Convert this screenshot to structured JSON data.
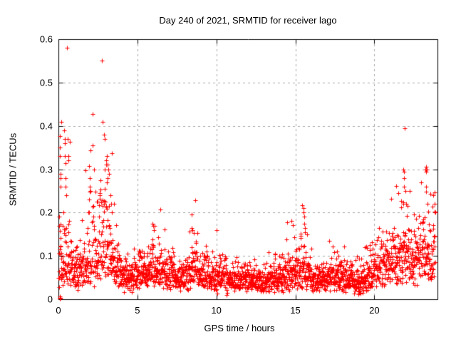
{
  "chart_data": {
    "type": "scatter",
    "title": "Day 240 of 2021, SRMTID for receiver lago",
    "xlabel": "GPS time / hours",
    "ylabel": "SRMTID / TECUs",
    "xlim": [
      0,
      24
    ],
    "ylim": [
      0,
      0.6
    ],
    "xtick_values": [
      0,
      5,
      10,
      15,
      20
    ],
    "xtick_labels": [
      "0",
      "5",
      "10",
      "15",
      "20"
    ],
    "ytick_values": [
      0,
      0.1,
      0.2,
      0.3,
      0.4,
      0.5,
      0.6
    ],
    "ytick_labels": [
      "0",
      "0.1",
      "0.2",
      "0.3",
      "0.4",
      "0.5",
      "0.6"
    ],
    "grid": true,
    "grid_color": "#a6a6a6",
    "border_color": "#000000",
    "background_color": "#ffffff",
    "marker": {
      "shape": "plus",
      "color": "#ff0000",
      "size": 7
    },
    "sampling": {
      "n_points": 2400,
      "t_start": 0.02,
      "t_end": 23.85,
      "seed": 20210240
    },
    "envelope": {
      "comment": "per-half-hour distribution of SRMTID values read from the plot: median band and upper envelope (TECUs)",
      "hours": [
        0,
        0.5,
        1,
        1.5,
        2,
        2.5,
        3,
        3.5,
        4,
        4.5,
        5,
        5.5,
        6,
        6.5,
        7,
        7.5,
        8,
        8.5,
        9,
        9.5,
        10,
        10.5,
        11,
        11.5,
        12,
        12.5,
        13,
        13.5,
        14,
        14.5,
        15,
        15.5,
        16,
        16.5,
        17,
        17.5,
        18,
        18.5,
        19,
        19.5,
        20,
        20.5,
        21,
        21.5,
        22,
        22.5,
        23,
        23.5,
        24
      ],
      "median": [
        0.075,
        0.08,
        0.07,
        0.07,
        0.08,
        0.095,
        0.12,
        0.09,
        0.055,
        0.055,
        0.065,
        0.06,
        0.08,
        0.06,
        0.065,
        0.045,
        0.055,
        0.075,
        0.06,
        0.055,
        0.05,
        0.05,
        0.05,
        0.045,
        0.05,
        0.045,
        0.04,
        0.045,
        0.05,
        0.06,
        0.065,
        0.075,
        0.055,
        0.05,
        0.05,
        0.06,
        0.05,
        0.045,
        0.04,
        0.055,
        0.065,
        0.075,
        0.085,
        0.095,
        0.11,
        0.095,
        0.1,
        0.11,
        0.1
      ],
      "high": [
        0.3,
        0.38,
        0.13,
        0.16,
        0.27,
        0.5,
        0.34,
        0.22,
        0.1,
        0.1,
        0.13,
        0.12,
        0.18,
        0.13,
        0.14,
        0.09,
        0.12,
        0.17,
        0.13,
        0.11,
        0.1,
        0.095,
        0.1,
        0.09,
        0.095,
        0.085,
        0.09,
        0.085,
        0.11,
        0.13,
        0.14,
        0.21,
        0.12,
        0.1,
        0.11,
        0.12,
        0.12,
        0.1,
        0.09,
        0.15,
        0.14,
        0.17,
        0.18,
        0.22,
        0.3,
        0.2,
        0.24,
        0.3,
        0.22
      ]
    },
    "notable_points": [
      [
        0.07,
        0.002
      ],
      [
        0.09,
        0.004
      ],
      [
        0.1,
        0.006
      ],
      [
        0.11,
        0.001
      ],
      [
        0.13,
        0.003
      ],
      [
        0.05,
        0.19
      ],
      [
        0.06,
        0.17
      ],
      [
        0.1,
        0.35
      ],
      [
        0.1,
        0.33
      ],
      [
        0.12,
        0.29
      ],
      [
        0.13,
        0.28
      ],
      [
        0.15,
        0.26
      ],
      [
        0.2,
        0.41
      ],
      [
        0.38,
        0.39
      ],
      [
        0.4,
        0.37
      ],
      [
        0.4,
        0.36
      ],
      [
        0.42,
        0.33
      ],
      [
        0.45,
        0.28
      ],
      [
        0.45,
        0.26
      ],
      [
        0.48,
        0.24
      ],
      [
        0.6,
        0.37
      ],
      [
        0.62,
        0.33
      ],
      [
        0.63,
        0.32
      ],
      [
        1.9,
        0.2
      ],
      [
        1.95,
        0.23
      ],
      [
        2.0,
        0.28
      ],
      [
        2.0,
        0.26
      ],
      [
        2.02,
        0.25
      ],
      [
        2.75,
        0.55
      ],
      [
        2.8,
        0.41
      ],
      [
        2.9,
        0.38
      ],
      [
        2.92,
        0.37
      ],
      [
        2.95,
        0.3
      ],
      [
        3.0,
        0.32
      ],
      [
        3.02,
        0.31
      ],
      [
        3.05,
        0.33
      ],
      [
        3.05,
        0.27
      ],
      [
        3.1,
        0.31
      ],
      [
        3.1,
        0.28
      ],
      [
        3.15,
        0.3
      ],
      [
        3.2,
        0.29
      ],
      [
        3.3,
        0.24
      ],
      [
        3.35,
        0.22
      ],
      [
        3.4,
        0.2
      ],
      [
        5.95,
        0.175
      ],
      [
        6.0,
        0.17
      ],
      [
        6.05,
        0.16
      ],
      [
        8.45,
        0.165
      ],
      [
        8.5,
        0.16
      ],
      [
        15.5,
        0.21
      ],
      [
        15.52,
        0.2
      ],
      [
        15.55,
        0.19
      ],
      [
        15.58,
        0.175
      ],
      [
        15.6,
        0.165
      ],
      [
        19.0,
        0.012
      ],
      [
        19.05,
        0.015
      ],
      [
        21.85,
        0.3
      ],
      [
        21.88,
        0.28
      ],
      [
        21.9,
        0.295
      ],
      [
        21.9,
        0.26
      ],
      [
        21.95,
        0.25
      ],
      [
        22.0,
        0.22
      ],
      [
        23.25,
        0.3
      ],
      [
        23.28,
        0.295
      ],
      [
        23.3,
        0.305
      ],
      [
        23.32,
        0.3
      ],
      [
        23.3,
        0.26
      ],
      [
        23.35,
        0.22
      ],
      [
        23.75,
        0.24
      ],
      [
        23.8,
        0.22
      ],
      [
        23.85,
        0.2
      ]
    ]
  }
}
